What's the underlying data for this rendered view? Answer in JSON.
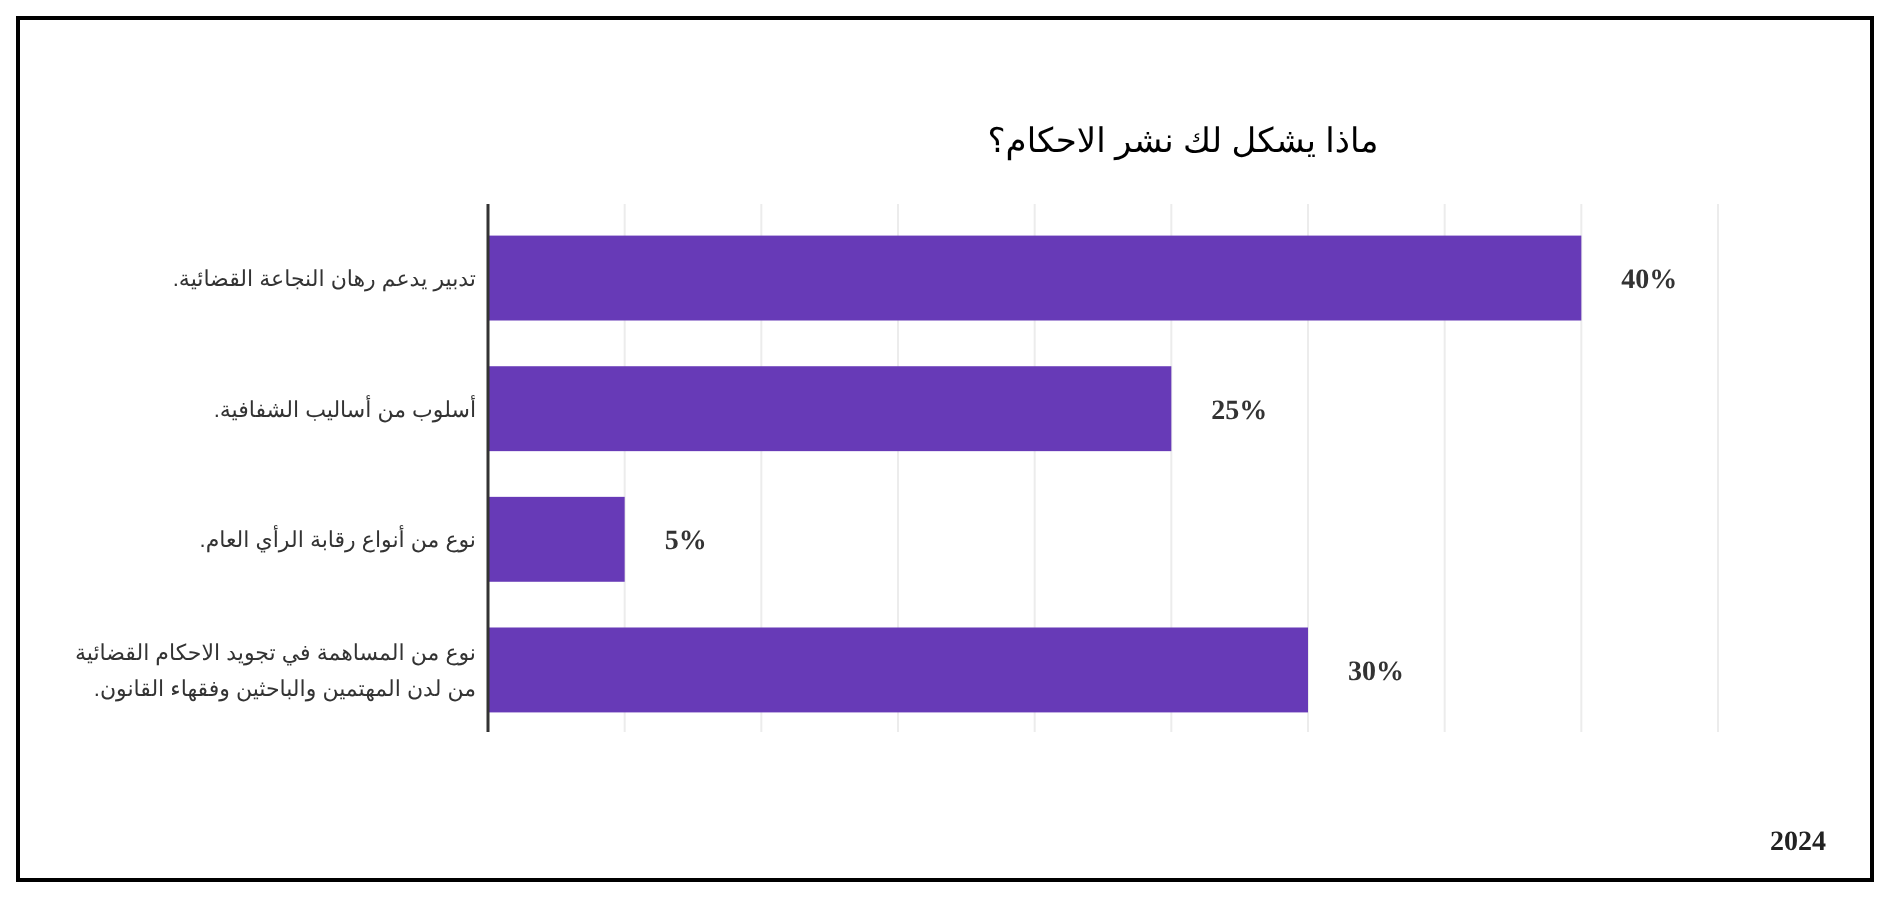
{
  "chart_data": {
    "type": "bar",
    "orientation": "horizontal",
    "title": "ماذا يشكل لك نشر الاحكام؟",
    "categories": [
      "تدبير يدعم رهان النجاعة القضائية.",
      "أسلوب من أساليب الشفافية.",
      "نوع من أنواع رقابة الرأي العام.",
      "نوع من المساهمة في تجويد الاحكام القضائية\nمن لدن المهتمين والباحثين وفقهاء القانون."
    ],
    "values": [
      40,
      25,
      5,
      30
    ],
    "value_labels": [
      "40%",
      "25%",
      "5%",
      "30%"
    ],
    "color": "#673ab7",
    "xlim": [
      0,
      45
    ],
    "xticks": [
      {
        "value": 0,
        "label": null
      },
      {
        "value": 5,
        "label": null
      },
      {
        "value": 10,
        "label": null
      },
      {
        "value": 15,
        "label": null
      },
      {
        "value": 20,
        "label": null
      },
      {
        "value": 25,
        "label": null
      },
      {
        "value": 30,
        "label": null
      },
      {
        "value": 35,
        "label": null
      },
      {
        "value": 40,
        "label": null
      },
      {
        "value": 45,
        "label": null
      }
    ],
    "tick_labels": "y",
    "grid": "x",
    "annotations": [
      "2024"
    ]
  }
}
